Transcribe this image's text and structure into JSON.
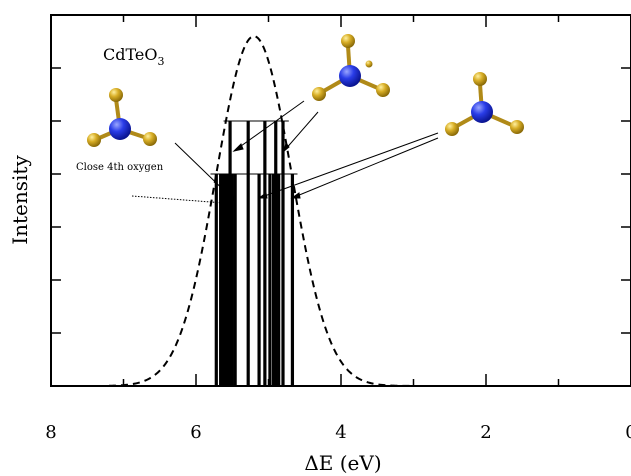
{
  "chart_data": {
    "type": "bar",
    "title": "",
    "xlabel": "ΔE (eV)",
    "ylabel": "Intensity",
    "xlim": [
      8,
      0
    ],
    "ylim": [
      0,
      7
    ],
    "x_ticks": [
      {
        "value": 8,
        "label": "8"
      },
      {
        "value": 6,
        "label": "6"
      },
      {
        "value": 4,
        "label": "4"
      },
      {
        "value": 2,
        "label": "2"
      },
      {
        "value": 0,
        "label": "0"
      }
    ],
    "stick_series": [
      {
        "name": "",
        "x": [
          5.72,
          5.66,
          5.62,
          5.58,
          5.55,
          5.5,
          5.46,
          5.13,
          4.98,
          4.93,
          4.9,
          4.86,
          4.67
        ],
        "values": [
          4,
          4,
          4,
          4,
          4,
          4,
          4,
          4,
          4,
          4,
          4,
          4,
          4
        ]
      },
      {
        "name": "",
        "x": [
          5.53,
          5.28,
          5.05,
          4.9,
          4.8
        ],
        "values": [
          5,
          5,
          5,
          5,
          5
        ]
      }
    ],
    "gaussian_envelope": {
      "center_eV": 5.2,
      "peak_intensity": 6.6,
      "sigma_eV": 0.52,
      "line_style": "dashed"
    },
    "annotations": {
      "compound_label": "CdTeO",
      "compound_subscript": "3",
      "close_oxygen_label": "Close 4th oxygen"
    },
    "colors": {
      "tellurium_atom": "#1b2fd6",
      "oxygen_atom": "#c9a21e",
      "bond": "#b08a18"
    }
  }
}
